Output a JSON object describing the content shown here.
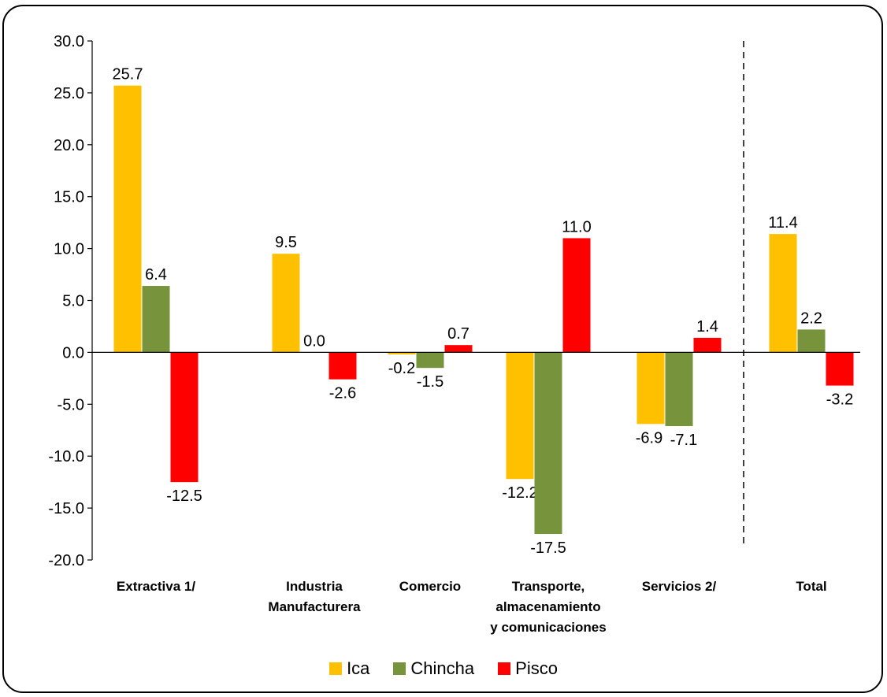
{
  "chart_data": {
    "type": "bar",
    "categories": [
      [
        "Extractiva 1/"
      ],
      [
        "Industria",
        "Manufacturera"
      ],
      [
        "Comercio"
      ],
      [
        "Transporte,",
        "almacenamiento",
        "y comunicaciones"
      ],
      [
        "Servicios  2/"
      ],
      [
        "Total"
      ]
    ],
    "series": [
      {
        "name": "Ica",
        "color": "#FFC000",
        "values": [
          25.7,
          9.5,
          -0.2,
          -12.2,
          -6.9,
          11.4
        ]
      },
      {
        "name": "Chincha",
        "color": "#77933C",
        "values": [
          6.4,
          0.0,
          -1.5,
          -17.5,
          -7.1,
          2.2
        ]
      },
      {
        "name": "Pisco",
        "color": "#FF0000",
        "values": [
          -12.5,
          -2.6,
          0.7,
          11.0,
          1.4,
          -3.2
        ]
      }
    ],
    "y_ticks": [
      "30.0",
      "25.0",
      "20.0",
      "15.0",
      "10.0",
      "5.0",
      "0.0",
      "-5.0",
      "-10.0",
      "-15.0",
      "-20.0"
    ],
    "ylim": [
      -20,
      30
    ],
    "separator_before_last": true,
    "legend_position": "bottom",
    "grid": false
  }
}
